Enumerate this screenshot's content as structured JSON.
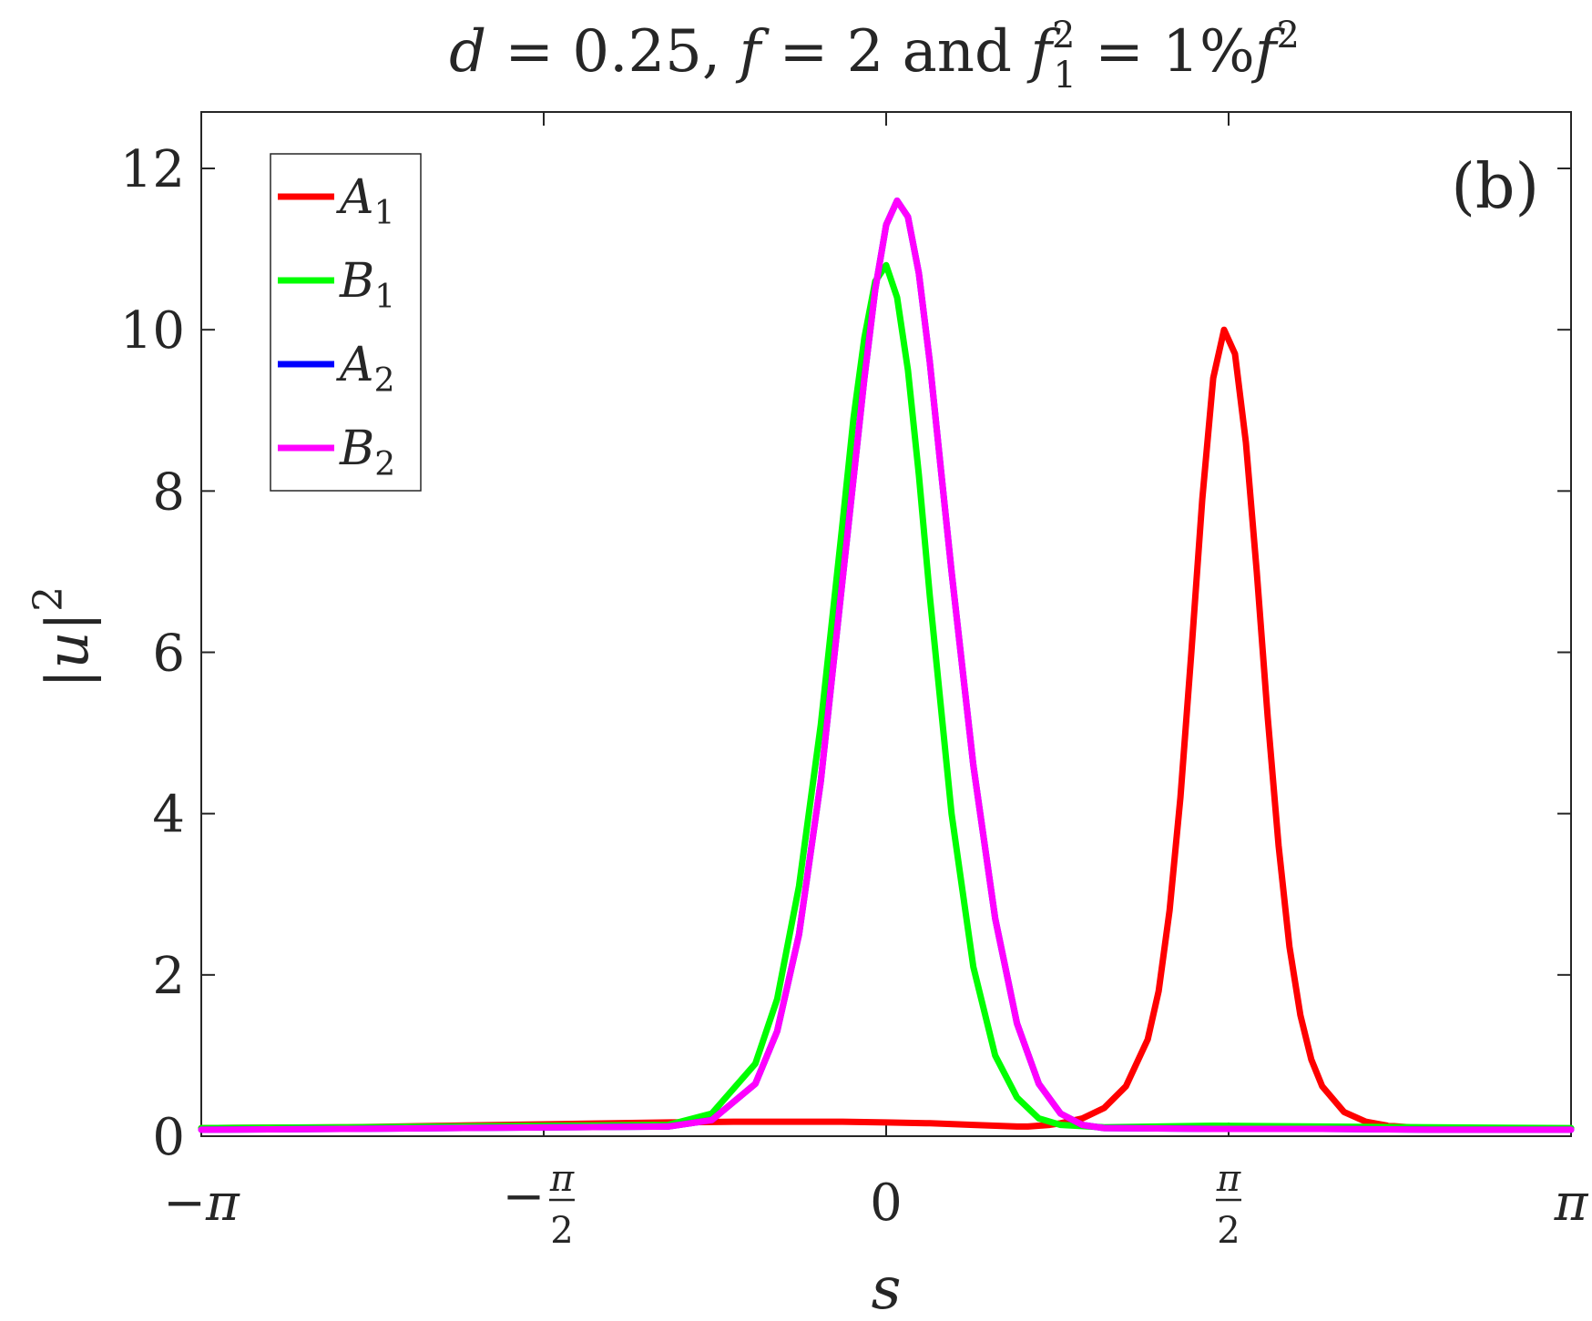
{
  "chart_data": {
    "type": "line",
    "title": "d = 0.25, f = 2 and f_1^2 = 1%f^2",
    "title_parts": {
      "d": "d",
      "eq1": " = 0.25, ",
      "f": "f",
      "eq2": " = 2 and ",
      "f1": "f",
      "f1_sub": "1",
      "f1_sup": "2",
      "eq3": " = 1%",
      "f3": "f",
      "f3_sup": "2"
    },
    "panel_label": "(b)",
    "xlabel": "s",
    "ylabel": "|u|",
    "ylabel_sup": "2",
    "xlim": [
      -3.14159,
      3.14159
    ],
    "ylim": [
      0,
      12.7
    ],
    "yticks": [
      0,
      2,
      4,
      6,
      8,
      10,
      12
    ],
    "ytick_labels": [
      "0",
      "2",
      "4",
      "6",
      "8",
      "10",
      "12"
    ],
    "xticks": [
      -3.14159,
      -1.5708,
      0,
      1.5708,
      3.14159
    ],
    "xtick_labels": [
      {
        "prefix": "−",
        "main": "π",
        "num": "",
        "den": ""
      },
      {
        "prefix": "−",
        "main": "",
        "num": "π",
        "den": "2"
      },
      {
        "prefix": "",
        "main": "0",
        "num": "",
        "den": ""
      },
      {
        "prefix": "",
        "main": "",
        "num": "π",
        "den": "2"
      },
      {
        "prefix": "",
        "main": "π",
        "num": "",
        "den": ""
      }
    ],
    "grid": false,
    "legend_position": "top-left",
    "series": [
      {
        "name": "A",
        "sub": "1",
        "color": "#ff0000",
        "x": [
          -3.1416,
          -2.5,
          -2.0,
          -1.5,
          -1.0,
          -0.7,
          -0.5,
          -0.2,
          0.0,
          0.2,
          0.4,
          0.5,
          0.6,
          0.65,
          0.7,
          0.75,
          0.8,
          0.9,
          1.0,
          1.1,
          1.2,
          1.25,
          1.3,
          1.35,
          1.4,
          1.45,
          1.5,
          1.55,
          1.6,
          1.65,
          1.7,
          1.75,
          1.8,
          1.85,
          1.9,
          1.95,
          2.0,
          2.1,
          2.2,
          2.3,
          2.4,
          2.6,
          2.8,
          3.0,
          3.1416
        ],
        "y": [
          0.1,
          0.11,
          0.13,
          0.15,
          0.17,
          0.18,
          0.18,
          0.18,
          0.17,
          0.16,
          0.14,
          0.13,
          0.12,
          0.12,
          0.13,
          0.14,
          0.16,
          0.22,
          0.35,
          0.62,
          1.2,
          1.8,
          2.8,
          4.2,
          6.0,
          7.9,
          9.4,
          10.0,
          9.7,
          8.6,
          7.0,
          5.2,
          3.6,
          2.35,
          1.5,
          0.95,
          0.62,
          0.3,
          0.18,
          0.13,
          0.11,
          0.1,
          0.09,
          0.09,
          0.09
        ]
      },
      {
        "name": "B",
        "sub": "1",
        "color": "#00ff00",
        "x": [
          -3.1416,
          -2.5,
          -2.0,
          -1.5,
          -1.0,
          -0.8,
          -0.6,
          -0.5,
          -0.4,
          -0.3,
          -0.2,
          -0.15,
          -0.1,
          -0.05,
          0.0,
          0.05,
          0.1,
          0.15,
          0.2,
          0.3,
          0.4,
          0.5,
          0.6,
          0.7,
          0.8,
          1.0,
          1.5,
          2.0,
          2.5,
          3.1416
        ],
        "y": [
          0.1,
          0.11,
          0.12,
          0.13,
          0.14,
          0.28,
          0.9,
          1.7,
          3.1,
          5.1,
          7.6,
          8.9,
          9.9,
          10.6,
          10.8,
          10.4,
          9.5,
          8.2,
          6.7,
          4.0,
          2.1,
          1.0,
          0.48,
          0.22,
          0.14,
          0.11,
          0.13,
          0.12,
          0.11,
          0.1
        ]
      },
      {
        "name": "A",
        "sub": "2",
        "color": "#0000ff",
        "x": [
          -3.1416,
          -2.5,
          -2.0,
          -1.5,
          -1.0,
          -0.8,
          -0.6,
          -0.5,
          -0.4,
          -0.3,
          -0.2,
          -0.1,
          -0.05,
          0.0,
          0.05,
          0.1,
          0.15,
          0.2,
          0.25,
          0.3,
          0.4,
          0.5,
          0.6,
          0.7,
          0.8,
          0.9,
          1.0,
          1.5,
          2.0,
          2.5,
          3.1416
        ],
        "y": [
          0.08,
          0.09,
          0.1,
          0.11,
          0.12,
          0.2,
          0.65,
          1.3,
          2.5,
          4.4,
          6.9,
          9.4,
          10.5,
          11.3,
          11.6,
          11.4,
          10.7,
          9.6,
          8.3,
          7.0,
          4.6,
          2.7,
          1.4,
          0.65,
          0.28,
          0.14,
          0.1,
          0.09,
          0.09,
          0.08,
          0.08
        ]
      },
      {
        "name": "B",
        "sub": "2",
        "color": "#ff00ff",
        "x": [
          -3.1416,
          -2.5,
          -2.0,
          -1.5,
          -1.0,
          -0.8,
          -0.6,
          -0.5,
          -0.4,
          -0.3,
          -0.2,
          -0.1,
          -0.05,
          0.0,
          0.05,
          0.1,
          0.15,
          0.2,
          0.25,
          0.3,
          0.4,
          0.5,
          0.6,
          0.7,
          0.8,
          0.9,
          1.0,
          1.5,
          2.0,
          2.5,
          3.1416
        ],
        "y": [
          0.08,
          0.09,
          0.1,
          0.11,
          0.12,
          0.2,
          0.65,
          1.3,
          2.5,
          4.4,
          6.9,
          9.4,
          10.5,
          11.3,
          11.6,
          11.4,
          10.7,
          9.6,
          8.3,
          7.0,
          4.6,
          2.7,
          1.4,
          0.65,
          0.28,
          0.14,
          0.1,
          0.09,
          0.09,
          0.08,
          0.08
        ]
      }
    ]
  }
}
